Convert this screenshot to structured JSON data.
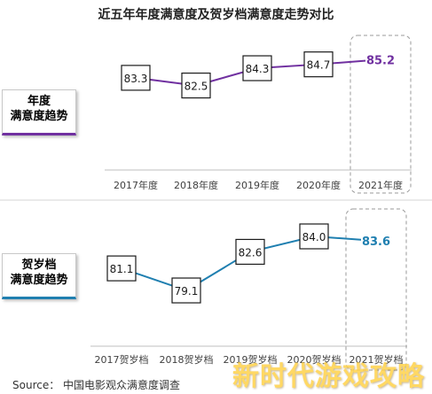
{
  "title": "近五年年度满意度及贺岁档满意度走势对比",
  "source": "Source：  中国电影观众满意度调查",
  "watermark": "新时代游戏攻略",
  "side_labels": {
    "annual": {
      "line1": "年度",
      "line2": "满意度趋势"
    },
    "hesui": {
      "line1": "贺岁档",
      "line2": "满意度趋势"
    }
  },
  "chart_data": [
    {
      "type": "line",
      "name": "annual",
      "categories": [
        "2017年度",
        "2018年度",
        "2019年度",
        "2020年度",
        "2021年度"
      ],
      "values": [
        83.3,
        82.5,
        84.3,
        84.7,
        85.2
      ],
      "value_labels": [
        "83.3",
        "82.5",
        "84.3",
        "84.7",
        "85.2"
      ],
      "ylim": [
        82.0,
        85.5
      ],
      "color": "#7030a0",
      "highlight_last": true
    },
    {
      "type": "line",
      "name": "hesui",
      "categories": [
        "2017贺岁档",
        "2018贺岁档",
        "2019贺岁档",
        "2020贺岁档",
        "2021贺岁档"
      ],
      "values": [
        81.1,
        79.1,
        82.6,
        84.0,
        83.6
      ],
      "value_labels": [
        "81.1",
        "79.1",
        "82.6",
        "84.0",
        "83.6"
      ],
      "ylim": [
        78.3,
        84.4
      ],
      "color": "#1f7fb0",
      "highlight_last": true
    }
  ]
}
